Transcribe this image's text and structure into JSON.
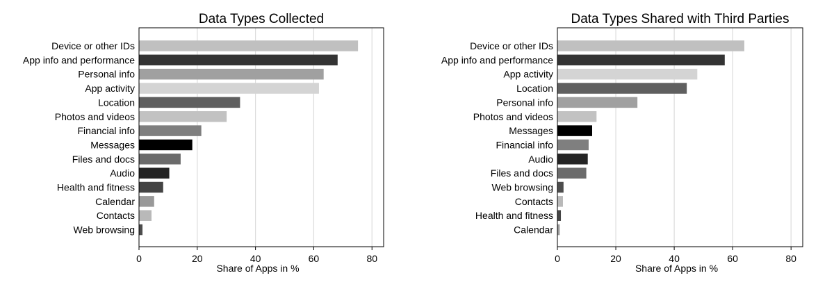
{
  "chart_data": [
    {
      "type": "bar",
      "orientation": "horizontal",
      "title": "Data Types Collected",
      "xlabel": "Share of Apps in %",
      "ylabel": "",
      "xlim": [
        0,
        84
      ],
      "xticks": [
        0,
        20,
        40,
        60,
        80
      ],
      "grid": true,
      "categories": [
        "Device or other IDs",
        "App info and performance",
        "Personal info",
        "App activity",
        "Location",
        "Photos and videos",
        "Financial info",
        "Messages",
        "Files and docs",
        "Audio",
        "Health and fitness",
        "Calendar",
        "Contacts",
        "Web browsing"
      ],
      "values": [
        75.2,
        68.2,
        63.4,
        61.8,
        34.7,
        30.1,
        21.4,
        18.3,
        14.3,
        10.4,
        8.3,
        5.2,
        4.3,
        1.2
      ],
      "colors": [
        "#c0c0c0",
        "#333333",
        "#a0a0a0",
        "#d4d4d4",
        "#5f5f5f",
        "#c2c2c2",
        "#7f7f7f",
        "#000000",
        "#6b6b6b",
        "#242424",
        "#444444",
        "#999999",
        "#b9b9b9",
        "#4d4d4d"
      ]
    },
    {
      "type": "bar",
      "orientation": "horizontal",
      "title": "Data Types Shared with Third Parties",
      "xlabel": "Share of Apps in %",
      "ylabel": "",
      "xlim": [
        0,
        84
      ],
      "xticks": [
        0,
        20,
        40,
        60,
        80
      ],
      "grid": true,
      "categories": [
        "Device or other IDs",
        "App info and performance",
        "App activity",
        "Location",
        "Personal info",
        "Photos and videos",
        "Messages",
        "Financial info",
        "Audio",
        "Files and docs",
        "Web browsing",
        "Contacts",
        "Health and fitness",
        "Calendar"
      ],
      "values": [
        64.0,
        57.3,
        47.9,
        44.3,
        27.4,
        13.4,
        11.9,
        10.7,
        10.4,
        9.9,
        2.1,
        1.9,
        1.2,
        0.8
      ],
      "colors": [
        "#c0c0c0",
        "#333333",
        "#d4d4d4",
        "#5f5f5f",
        "#a0a0a0",
        "#c2c2c2",
        "#000000",
        "#7f7f7f",
        "#242424",
        "#6b6b6b",
        "#4d4d4d",
        "#b9b9b9",
        "#444444",
        "#999999"
      ]
    }
  ]
}
